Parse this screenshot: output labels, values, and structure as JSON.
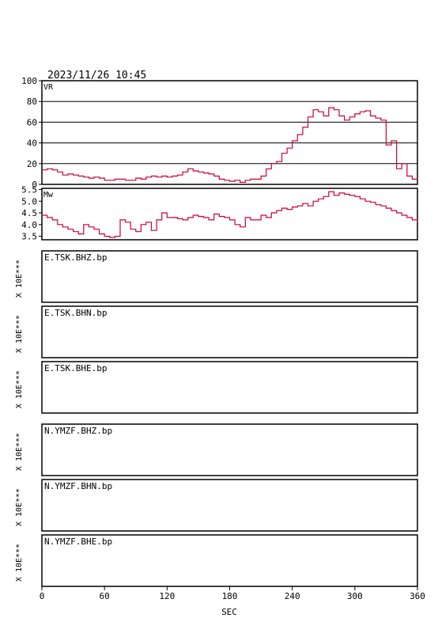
{
  "header": {
    "datetime": "2023/11/26  10:45"
  },
  "x_axis": {
    "label": "SEC",
    "ticks": [
      "0",
      "60",
      "120",
      "180",
      "240",
      "300",
      "360"
    ]
  },
  "chart_data": [
    {
      "type": "line",
      "label": "VR",
      "y_ticks": [
        "100",
        "80",
        "60",
        "40",
        "20",
        "0"
      ],
      "ylim": [
        0,
        100
      ],
      "xlim": [
        0,
        360
      ],
      "grid": true,
      "color": "#cc0033",
      "x": [
        0,
        5,
        10,
        15,
        20,
        25,
        30,
        35,
        40,
        45,
        50,
        55,
        60,
        65,
        70,
        75,
        80,
        85,
        90,
        95,
        100,
        105,
        110,
        115,
        120,
        125,
        130,
        135,
        140,
        145,
        150,
        155,
        160,
        165,
        170,
        175,
        180,
        185,
        190,
        195,
        200,
        205,
        210,
        215,
        220,
        225,
        230,
        235,
        240,
        245,
        250,
        255,
        260,
        265,
        270,
        275,
        280,
        285,
        290,
        295,
        300,
        305,
        310,
        315,
        320,
        325,
        330,
        335,
        340,
        345,
        350,
        355,
        360
      ],
      "values": [
        14,
        15,
        14,
        12,
        9,
        10,
        9,
        8,
        7,
        6,
        7,
        6,
        4,
        4,
        5,
        5,
        4,
        4,
        6,
        5,
        7,
        8,
        7,
        8,
        7,
        8,
        9,
        12,
        15,
        13,
        12,
        11,
        10,
        8,
        5,
        4,
        3,
        4,
        2,
        4,
        5,
        5,
        8,
        15,
        20,
        22,
        30,
        35,
        42,
        48,
        55,
        65,
        72,
        70,
        66,
        74,
        72,
        66,
        62,
        65,
        68,
        70,
        71,
        66,
        64,
        62,
        38,
        42,
        15,
        20,
        8,
        5,
        4
      ]
    },
    {
      "type": "line",
      "label": "Mw",
      "y_ticks": [
        "5.5",
        "5.0",
        "4.5",
        "4.0",
        "3.5"
      ],
      "ylim": [
        3.35,
        5.55
      ],
      "xlim": [
        0,
        360
      ],
      "grid": false,
      "color": "#cc0033",
      "x": [
        0,
        5,
        10,
        15,
        20,
        25,
        30,
        35,
        40,
        45,
        50,
        55,
        60,
        65,
        70,
        75,
        80,
        85,
        90,
        95,
        100,
        105,
        110,
        115,
        120,
        125,
        130,
        135,
        140,
        145,
        150,
        155,
        160,
        165,
        170,
        175,
        180,
        185,
        190,
        195,
        200,
        205,
        210,
        215,
        220,
        225,
        230,
        235,
        240,
        245,
        250,
        255,
        260,
        265,
        270,
        275,
        280,
        285,
        290,
        295,
        300,
        305,
        310,
        315,
        320,
        325,
        330,
        335,
        340,
        345,
        350,
        355,
        360
      ],
      "values": [
        4.4,
        4.3,
        4.2,
        4.0,
        3.9,
        3.8,
        3.7,
        3.6,
        4.0,
        3.9,
        3.8,
        3.6,
        3.5,
        3.45,
        3.5,
        4.2,
        4.1,
        3.8,
        3.7,
        4.0,
        4.1,
        3.75,
        4.2,
        4.5,
        4.3,
        4.3,
        4.25,
        4.2,
        4.3,
        4.4,
        4.35,
        4.3,
        4.2,
        4.45,
        4.35,
        4.3,
        4.2,
        4.0,
        3.9,
        4.3,
        4.2,
        4.2,
        4.4,
        4.3,
        4.5,
        4.6,
        4.7,
        4.65,
        4.75,
        4.8,
        4.9,
        4.8,
        5.0,
        5.1,
        5.2,
        5.4,
        5.25,
        5.35,
        5.3,
        5.25,
        5.2,
        5.1,
        5.0,
        4.95,
        4.85,
        4.8,
        4.7,
        4.6,
        4.5,
        4.4,
        4.3,
        4.2,
        4.1
      ]
    }
  ],
  "traces": [
    {
      "name": "E.TSK.BHZ.bp",
      "scale_label": "X 10E***"
    },
    {
      "name": "E.TSK.BHN.bp",
      "scale_label": "X 10E***"
    },
    {
      "name": "E.TSK.BHE.bp",
      "scale_label": "X 10E***"
    },
    {
      "name": "N.YMZF.BHZ.bp",
      "scale_label": "X 10E***"
    },
    {
      "name": "N.YMZF.BHN.bp",
      "scale_label": "X 10E***"
    },
    {
      "name": "N.YMZF.BHE.bp",
      "scale_label": "X 10E***"
    }
  ]
}
